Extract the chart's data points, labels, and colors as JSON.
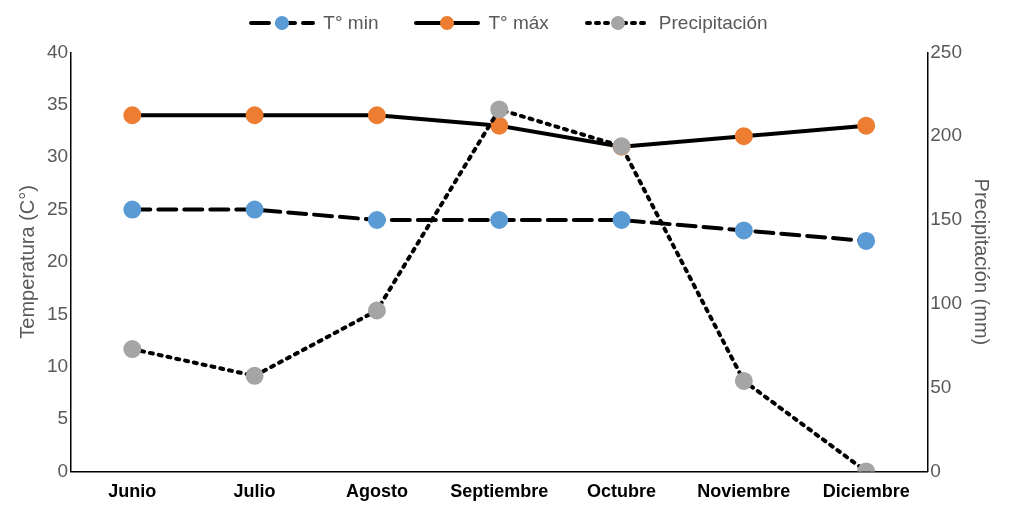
{
  "chart_data": {
    "type": "line",
    "ylabel": "Temperatura (C°)",
    "y2label": "Precipitación (mm)",
    "categories": [
      "Junio",
      "Julio",
      "Agosto",
      "Septiembre",
      "Octubre",
      "Noviembre",
      "Diciembre"
    ],
    "series": [
      {
        "name": "T° min",
        "color": "#5b9bd5",
        "line_style": "dashed",
        "values": [
          25,
          25,
          24,
          24,
          24,
          23,
          22
        ]
      },
      {
        "name": "T° máx",
        "color": "#ed7d31",
        "line_style": "solid",
        "values": [
          34,
          34,
          34,
          33,
          31,
          32,
          33
        ]
      },
      {
        "name": "Precipitación",
        "color": "#a5a5a5",
        "line_style": "dotted",
        "axis": "y2",
        "values": [
          73,
          57,
          96,
          216,
          194,
          54,
          0
        ]
      }
    ],
    "ylim": [
      0,
      40
    ],
    "yticks": [
      0,
      5,
      10,
      15,
      20,
      25,
      30,
      35,
      40
    ],
    "y2lim": [
      0,
      250
    ],
    "y2ticks": [
      0,
      50,
      100,
      150,
      200,
      250
    ],
    "grid": false,
    "legend": "top",
    "marker": "circle"
  }
}
